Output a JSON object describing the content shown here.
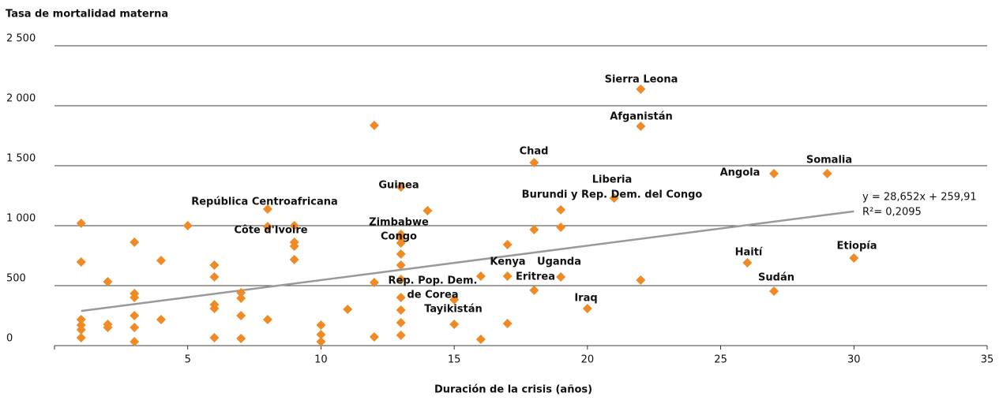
{
  "chart_data": {
    "type": "scatter",
    "title": "Tasa de mortalidad materna",
    "x_label": "Duración de la crisis (años)",
    "color": "#f08a24",
    "xlim": [
      0,
      35
    ],
    "xticks": [
      5,
      10,
      15,
      20,
      25,
      30,
      35
    ],
    "ylim": [
      0,
      2500
    ],
    "yticks": [
      0,
      500,
      {
        "value": 1000,
        "label": "1 000"
      },
      {
        "value": 1500,
        "label": "1 500"
      },
      {
        "value": 2000,
        "label": "2 000"
      },
      {
        "value": 2500,
        "label": "2 500"
      }
    ],
    "grid": true,
    "x": [
      1,
      1,
      1,
      1,
      1,
      1,
      2,
      2,
      2,
      3,
      3,
      3,
      3,
      3,
      3,
      4,
      4,
      5,
      6,
      6,
      6,
      6,
      6,
      7,
      7,
      7,
      7,
      8,
      8,
      8,
      9,
      9,
      9,
      9,
      10,
      10,
      10,
      11,
      12,
      12,
      12,
      13,
      13,
      13,
      13,
      13,
      13,
      13,
      13,
      13,
      13,
      13,
      14,
      15,
      15,
      16,
      16,
      17,
      17,
      17,
      18,
      18,
      18,
      19,
      19,
      19,
      20,
      21,
      22,
      22,
      22,
      26,
      27,
      27,
      29,
      30
    ],
    "values": [
      1020,
      697,
      217,
      171,
      132,
      66,
      533,
      178,
      151,
      862,
      434,
      401,
      250,
      151,
      33,
      710,
      217,
      1000,
      671,
      572,
      342,
      309,
      66,
      441,
      395,
      250,
      59,
      1138,
      993,
      217,
      1000,
      862,
      829,
      717,
      171,
      92,
      33,
      303,
      1836,
      526,
      72,
      1322,
      928,
      895,
      855,
      763,
      671,
      553,
      401,
      296,
      191,
      86,
      1125,
      382,
      178,
      579,
      53,
      842,
      579,
      184,
      1526,
      967,
      461,
      1132,
      987,
      572,
      309,
      1230,
      2138,
      1829,
      546,
      691,
      1434,
      454,
      1434,
      730
    ],
    "annotations": [
      "Sierra Leona",
      "Afganistán",
      "Chad",
      "Liberia",
      "Burundi y Rep. Dem. del Congo",
      "Angola",
      "Somalia",
      "República Centroafricana",
      "Guinea",
      "Zimbabwe",
      "Côte d'Ivoire",
      "Congo",
      "Kenya",
      "Uganda",
      "Eritrea",
      "Rep. Pop. Dem.",
      "de Corea",
      "Tayikistán",
      "Iraq",
      "Haití",
      "Sudán",
      "Etiopía"
    ],
    "trendline": {
      "slope": 28.652,
      "intercept": 259.91,
      "color": "#999999",
      "equation": "y = 28,652x + 259,91",
      "r2": "R²= 0,2095"
    }
  }
}
